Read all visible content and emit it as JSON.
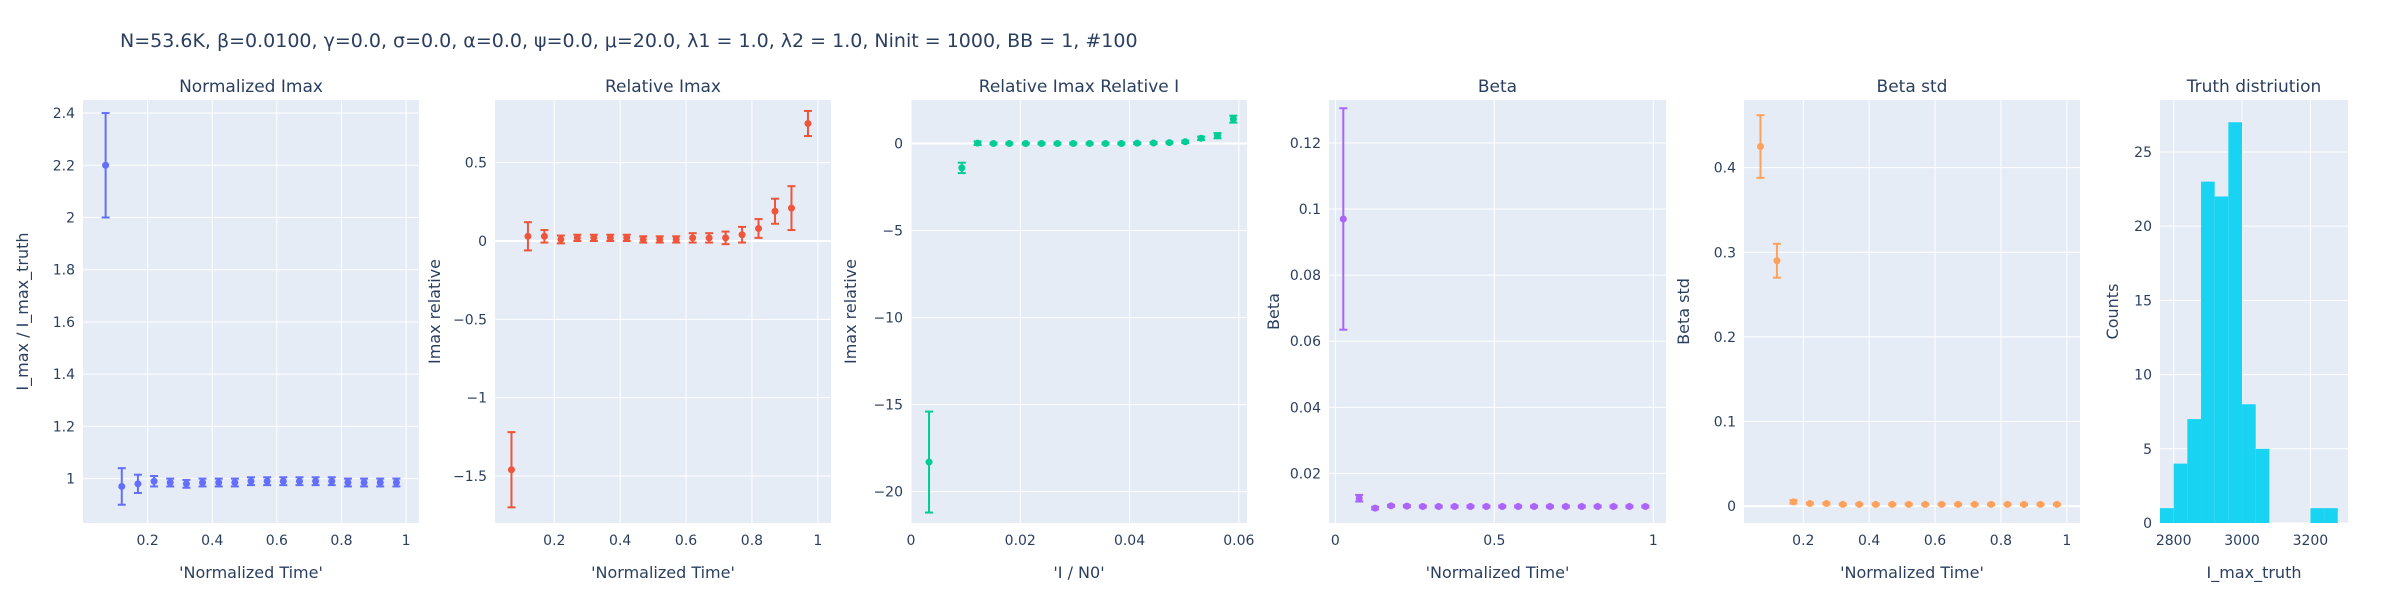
{
  "suptitle": "N=53.6K, β=0.0100, γ=0.0, σ=0.0,  α=0.0, ψ=0.0, μ=20.0, λ1 = 1.0, λ2 = 1.0, Ninit = 1000, BB = 1, #100",
  "colors": {
    "normalized_imax": "#636efa",
    "relative_imax": "#ef553b",
    "relative_imax_relative_i": "#00cc96",
    "beta": "#ab63fa",
    "beta_std": "#ffa15a",
    "truth_hist": "#19d3f3"
  },
  "chart_data": [
    {
      "type": "scatter",
      "title": "Normalized Imax",
      "xlabel": "'Normalized Time'",
      "ylabel": "I_max / I_max_truth",
      "xlim": [
        0.0,
        1.04
      ],
      "ylim": [
        0.83,
        2.45
      ],
      "xticks": [
        0.2,
        0.4,
        0.6,
        0.8,
        1
      ],
      "xtick_labels": [
        "0.2",
        "0.4",
        "0.6",
        "0.8",
        "1"
      ],
      "yticks": [
        1,
        1.2,
        1.4,
        1.6,
        1.8,
        2,
        2.2,
        2.4
      ],
      "ytick_labels": [
        "1",
        "1.2",
        "1.4",
        "1.6",
        "1.8",
        "2",
        "2.2",
        "2.4"
      ],
      "color_key": "normalized_imax",
      "series": [
        {
          "x": [
            0.07,
            0.12,
            0.17,
            0.22,
            0.27,
            0.32,
            0.37,
            0.42,
            0.47,
            0.52,
            0.57,
            0.62,
            0.67,
            0.72,
            0.77,
            0.82,
            0.87,
            0.92,
            0.97
          ],
          "y": [
            2.2,
            0.97,
            0.98,
            0.99,
            0.985,
            0.98,
            0.985,
            0.985,
            0.985,
            0.99,
            0.99,
            0.99,
            0.99,
            0.99,
            0.99,
            0.985,
            0.985,
            0.985,
            0.985
          ],
          "err": [
            0.2,
            0.07,
            0.035,
            0.02,
            0.015,
            0.015,
            0.015,
            0.015,
            0.015,
            0.015,
            0.015,
            0.015,
            0.015,
            0.015,
            0.015,
            0.015,
            0.015,
            0.015,
            0.015
          ]
        }
      ]
    },
    {
      "type": "scatter",
      "title": "Relative Imax",
      "xlabel": "'Normalized Time'",
      "ylabel": "Imax relative",
      "xlim": [
        0.02,
        1.04
      ],
      "ylim": [
        -1.8,
        0.9
      ],
      "xticks": [
        0.2,
        0.4,
        0.6,
        0.8,
        1
      ],
      "xtick_labels": [
        "0.2",
        "0.4",
        "0.6",
        "0.8",
        "1"
      ],
      "yticks": [
        -1.5,
        -1,
        -0.5,
        0,
        0.5
      ],
      "ytick_labels": [
        "−1.5",
        "−1",
        "−0.5",
        "0",
        "0.5"
      ],
      "zeroline": true,
      "color_key": "relative_imax",
      "series": [
        {
          "x": [
            0.07,
            0.12,
            0.17,
            0.22,
            0.27,
            0.32,
            0.37,
            0.42,
            0.47,
            0.52,
            0.57,
            0.62,
            0.67,
            0.72,
            0.77,
            0.82,
            0.87,
            0.92,
            0.97
          ],
          "y": [
            -1.46,
            0.03,
            0.03,
            0.01,
            0.02,
            0.02,
            0.02,
            0.02,
            0.01,
            0.01,
            0.01,
            0.02,
            0.02,
            0.02,
            0.04,
            0.08,
            0.19,
            0.21,
            0.75
          ],
          "err": [
            0.24,
            0.09,
            0.04,
            0.025,
            0.02,
            0.02,
            0.02,
            0.02,
            0.02,
            0.02,
            0.02,
            0.03,
            0.03,
            0.04,
            0.05,
            0.06,
            0.08,
            0.14,
            0.08
          ]
        }
      ]
    },
    {
      "type": "scatter",
      "title": "Relative Imax Relative I",
      "xlabel": "'I / N0'",
      "ylabel": "Imax relative",
      "xlim": [
        0.0,
        0.0615
      ],
      "ylim": [
        -21.8,
        2.5
      ],
      "xticks": [
        0,
        0.02,
        0.04,
        0.06
      ],
      "xtick_labels": [
        "0",
        "0.02",
        "0.04",
        "0.06"
      ],
      "yticks": [
        -20,
        -15,
        -10,
        -5,
        0
      ],
      "ytick_labels": [
        "−20",
        "−15",
        "−10",
        "−5",
        "0"
      ],
      "zeroline": true,
      "color_key": "relative_imax_relative_i",
      "series": [
        {
          "x": [
            0.0033,
            0.0093,
            0.0122,
            0.0151,
            0.018,
            0.021,
            0.0239,
            0.0268,
            0.0297,
            0.0327,
            0.0356,
            0.0385,
            0.0414,
            0.0444,
            0.0473,
            0.0502,
            0.0531,
            0.0561,
            0.059
          ],
          "y": [
            -18.3,
            -1.4,
            0.02,
            0.0,
            0.0,
            0.0,
            0.0,
            0.0,
            0.0,
            0.0,
            0.0,
            0.0,
            0.02,
            0.03,
            0.05,
            0.1,
            0.3,
            0.45,
            1.4
          ],
          "err": [
            2.9,
            0.3,
            0.1,
            0.05,
            0.05,
            0.05,
            0.05,
            0.05,
            0.05,
            0.05,
            0.05,
            0.05,
            0.05,
            0.05,
            0.05,
            0.07,
            0.1,
            0.15,
            0.2
          ]
        }
      ]
    },
    {
      "type": "scatter",
      "title": "Beta",
      "xlabel": "'Normalized Time'",
      "ylabel": "Beta",
      "xlim": [
        -0.02,
        1.04
      ],
      "ylim": [
        0.005,
        0.133
      ],
      "xticks": [
        0,
        0.5,
        1
      ],
      "xtick_labels": [
        "0",
        "0.5",
        "1"
      ],
      "yticks": [
        0.02,
        0.04,
        0.06,
        0.08,
        0.1,
        0.12
      ],
      "ytick_labels": [
        "0.02",
        "0.04",
        "0.06",
        "0.08",
        "0.1",
        "0.12"
      ],
      "color_key": "beta",
      "series": [
        {
          "x": [
            0.025,
            0.075,
            0.125,
            0.175,
            0.225,
            0.275,
            0.325,
            0.375,
            0.425,
            0.475,
            0.525,
            0.575,
            0.625,
            0.675,
            0.725,
            0.775,
            0.825,
            0.875,
            0.925,
            0.975
          ],
          "y": [
            0.097,
            0.0125,
            0.0095,
            0.0102,
            0.0101,
            0.01,
            0.01,
            0.01,
            0.01,
            0.01,
            0.01,
            0.01,
            0.01,
            0.01,
            0.01,
            0.01,
            0.01,
            0.01,
            0.01,
            0.01
          ],
          "err": [
            0.0335,
            0.001,
            0.0004,
            0.0003,
            0.0003,
            0.0003,
            0.0003,
            0.0003,
            0.0003,
            0.0003,
            0.0003,
            0.0003,
            0.0003,
            0.0003,
            0.0003,
            0.0003,
            0.0003,
            0.0003,
            0.0003,
            0.0003
          ]
        }
      ]
    },
    {
      "type": "scatter",
      "title": "Beta std",
      "xlabel": "'Normalized Time'",
      "ylabel": "Beta std",
      "xlim": [
        0.02,
        1.04
      ],
      "ylim": [
        -0.02,
        0.48
      ],
      "xticks": [
        0.2,
        0.4,
        0.6,
        0.8,
        1
      ],
      "xtick_labels": [
        "0.2",
        "0.4",
        "0.6",
        "0.8",
        "1"
      ],
      "yticks": [
        0,
        0.1,
        0.2,
        0.3,
        0.4
      ],
      "ytick_labels": [
        "0",
        "0.1",
        "0.2",
        "0.3",
        "0.4"
      ],
      "zeroline": true,
      "color_key": "beta_std",
      "series": [
        {
          "x": [
            0.07,
            0.12,
            0.17,
            0.22,
            0.27,
            0.32,
            0.37,
            0.42,
            0.47,
            0.52,
            0.57,
            0.62,
            0.67,
            0.72,
            0.77,
            0.82,
            0.87,
            0.92,
            0.97
          ],
          "y": [
            0.425,
            0.29,
            0.005,
            0.003,
            0.003,
            0.002,
            0.002,
            0.002,
            0.002,
            0.002,
            0.002,
            0.002,
            0.002,
            0.002,
            0.002,
            0.002,
            0.002,
            0.002,
            0.002
          ],
          "err": [
            0.037,
            0.02,
            0.002,
            0.001,
            0.001,
            0.001,
            0.001,
            0.001,
            0.001,
            0.001,
            0.001,
            0.001,
            0.001,
            0.001,
            0.001,
            0.001,
            0.001,
            0.001,
            0.001
          ]
        }
      ]
    },
    {
      "type": "bar",
      "title": "Truth distriution",
      "xlabel": "I_max_truth",
      "ylabel": "Counts",
      "xlim": [
        2760,
        3310
      ],
      "ylim": [
        0,
        28.5
      ],
      "xticks": [
        2800,
        3000,
        3200
      ],
      "xtick_labels": [
        "2800",
        "3000",
        "3200"
      ],
      "yticks": [
        0,
        5,
        10,
        15,
        20,
        25
      ],
      "ytick_labels": [
        "0",
        "5",
        "10",
        "15",
        "20",
        "25"
      ],
      "color_key": "truth_hist",
      "bin_edges": [
        2760,
        2800,
        2840,
        2880,
        2920,
        2960,
        3000,
        3040,
        3080,
        3120,
        3160,
        3200,
        3240,
        3280
      ],
      "counts": [
        1,
        4,
        7,
        23,
        22,
        27,
        8,
        5,
        0,
        0,
        0,
        1,
        1
      ]
    }
  ]
}
